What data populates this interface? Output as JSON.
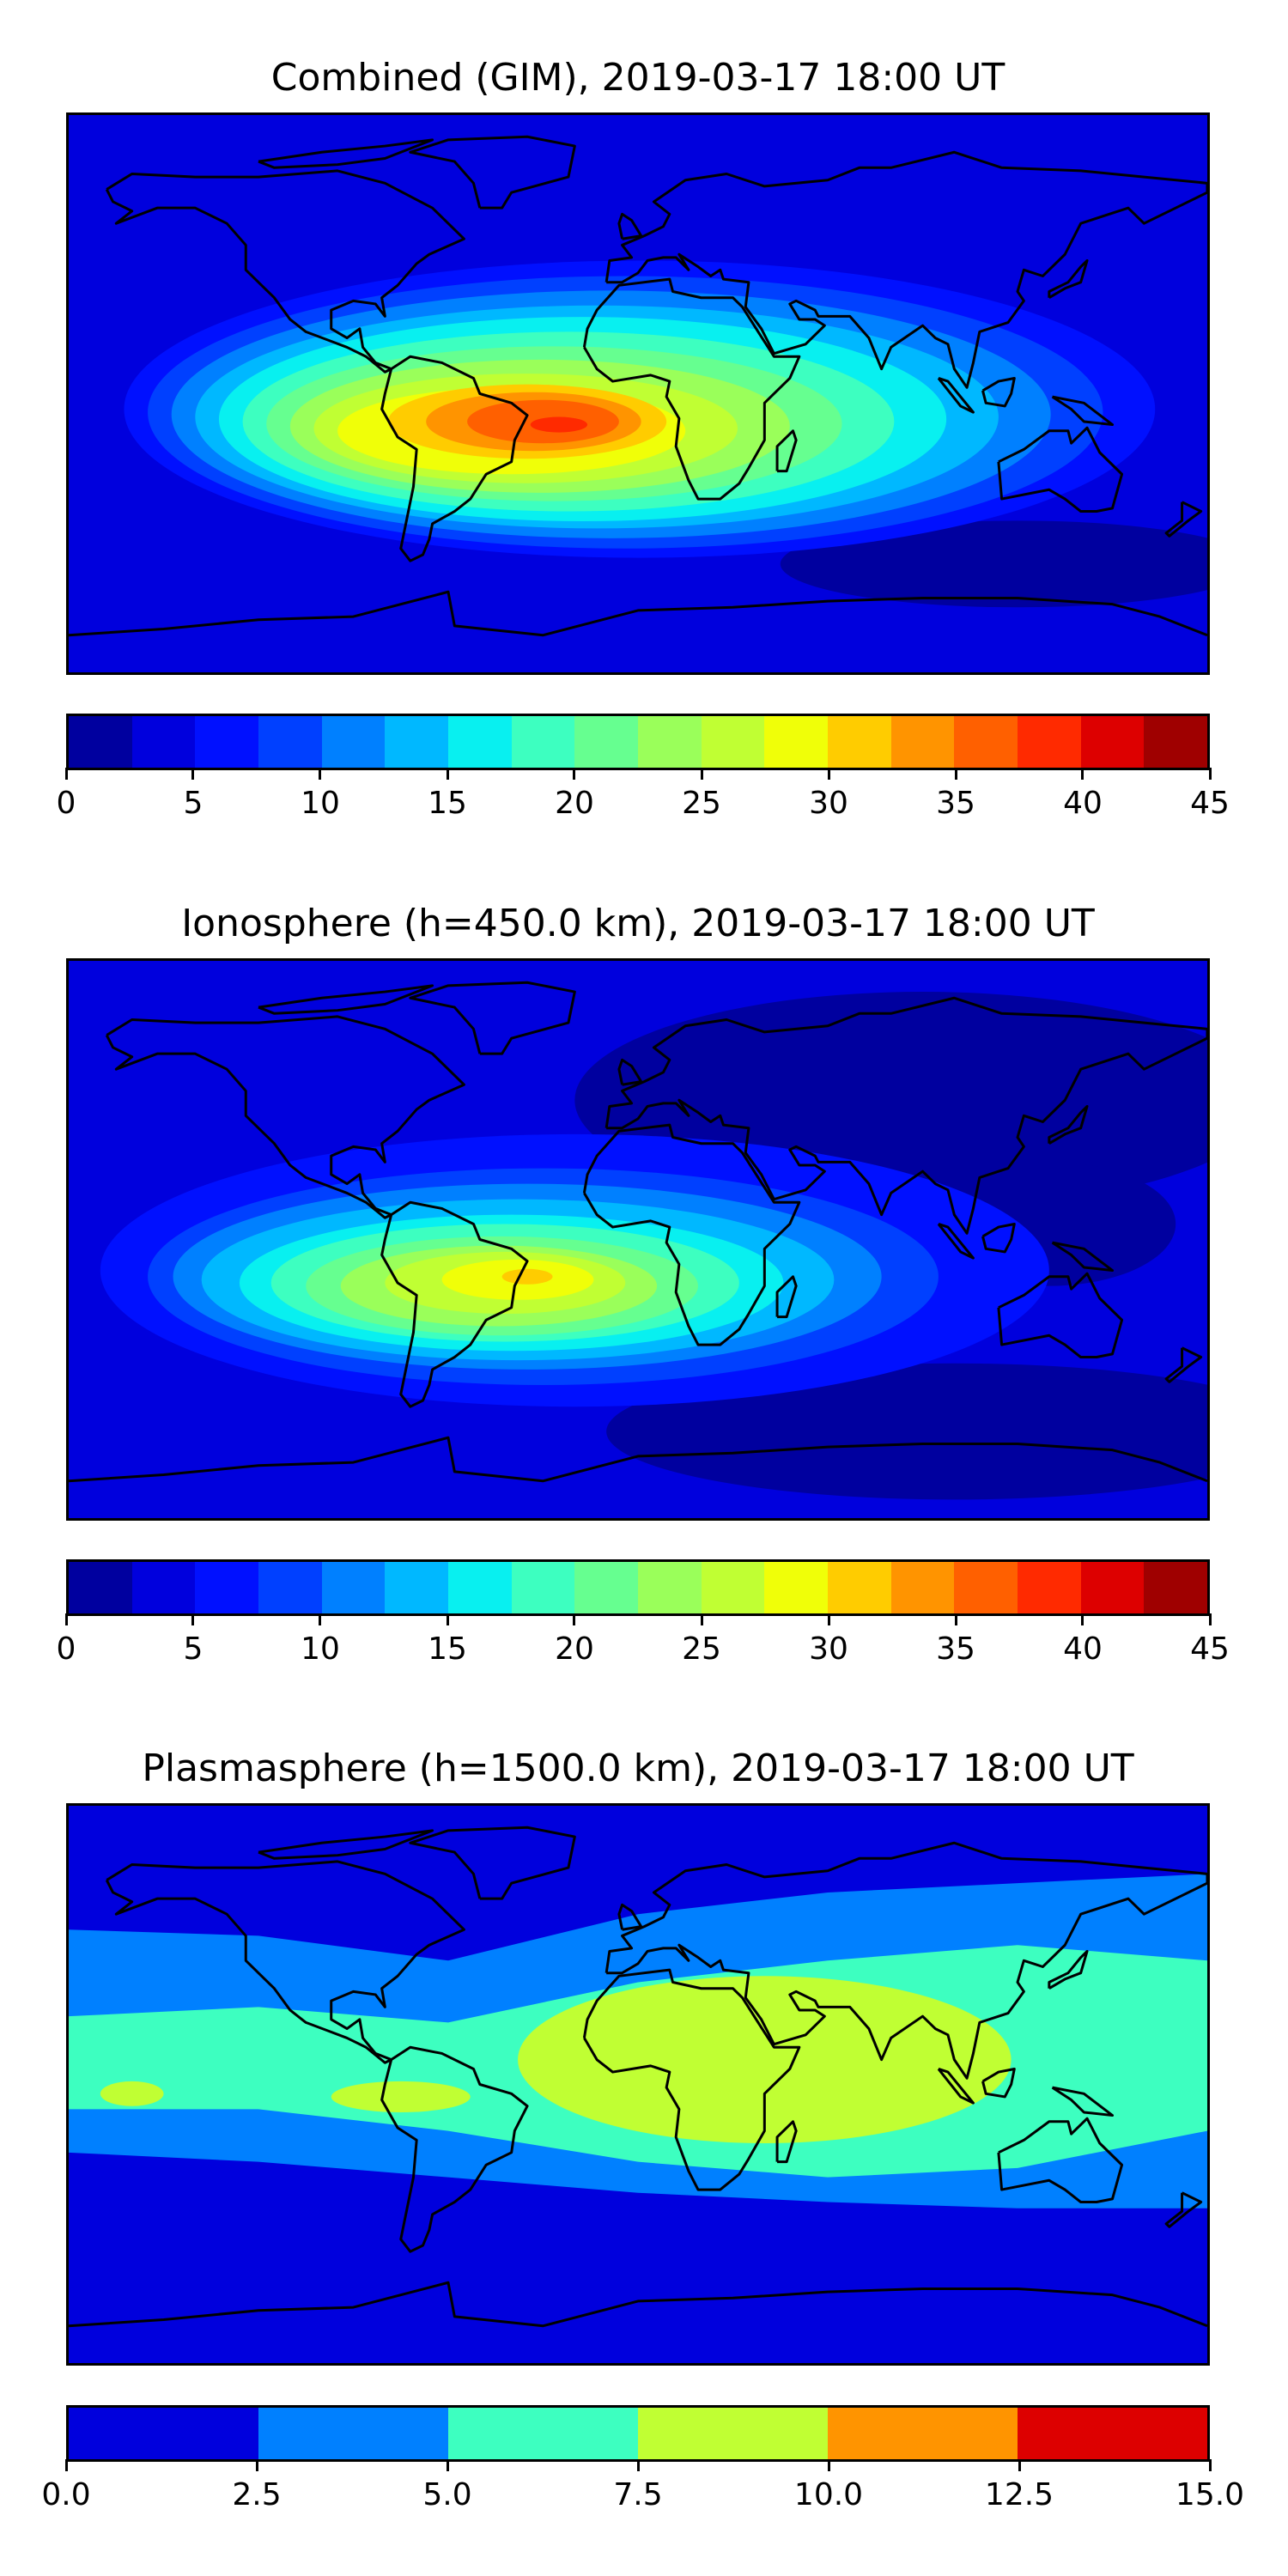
{
  "chart_data": [
    {
      "type": "heatmap",
      "subtype": "filled-contour-map",
      "title": "Combined (GIM), 2019-03-17 18:00 UT",
      "lon_range": [
        -180,
        180
      ],
      "lat_range": [
        -90,
        90
      ],
      "colorbar": {
        "ticks": [
          "0",
          "5",
          "10",
          "15",
          "20",
          "25",
          "30",
          "35",
          "40",
          "45"
        ],
        "levels": [
          0,
          2.5,
          5,
          7.5,
          10,
          12.5,
          15,
          17.5,
          20,
          22.5,
          25,
          27.5,
          30,
          32.5,
          35,
          37.5,
          40,
          42.5,
          45
        ],
        "colors": [
          "#00009f",
          "#0000dd",
          "#0010ff",
          "#0040ff",
          "#0080ff",
          "#00b8ff",
          "#08f0f0",
          "#3dffc0",
          "#66ff90",
          "#9aff5a",
          "#c0ff33",
          "#f0ff08",
          "#ffcc00",
          "#ff9400",
          "#ff6000",
          "#ff2a00",
          "#dd0000",
          "#9f0000"
        ]
      },
      "background_level_index": 1,
      "contours": [
        {
          "level_index": 0,
          "lon": 120,
          "lat": -55,
          "rlon": 75,
          "rlat": 14
        },
        {
          "level_index": 2,
          "lon": 0.5,
          "lat": -5,
          "rlon": 163,
          "rlat": 48
        },
        {
          "level_index": 3,
          "lon": -4,
          "lat": -6,
          "rlon": 151,
          "rlat": 44
        },
        {
          "level_index": 4,
          "lon": -8.5,
          "lat": -6.7,
          "rlon": 139,
          "rlat": 40
        },
        {
          "level_index": 5,
          "lon": -13,
          "lat": -7.5,
          "rlon": 127,
          "rlat": 36
        },
        {
          "level_index": 6,
          "lon": -17.5,
          "lat": -8.2,
          "rlon": 115,
          "rlat": 33
        },
        {
          "level_index": 7,
          "lon": -22,
          "lat": -9,
          "rlon": 103,
          "rlat": 29
        },
        {
          "level_index": 8,
          "lon": -26.5,
          "lat": -9.7,
          "rlon": 91,
          "rlat": 25
        },
        {
          "level_index": 9,
          "lon": -31,
          "lat": -10.5,
          "rlon": 79,
          "rlat": 21.5
        },
        {
          "level_index": 10,
          "lon": -35.5,
          "lat": -11.2,
          "rlon": 67,
          "rlat": 17.7
        },
        {
          "level_index": 11,
          "lon": -40,
          "lat": -12,
          "rlon": 55,
          "rlat": 14
        },
        {
          "level_index": 12,
          "lon": -35,
          "lat": -9,
          "rlon": 44,
          "rlat": 12
        },
        {
          "level_index": 13,
          "lon": -33,
          "lat": -9,
          "rlon": 34,
          "rlat": 9.5
        },
        {
          "level_index": 14,
          "lon": -30,
          "lat": -9,
          "rlon": 24,
          "rlat": 7
        },
        {
          "level_index": 15,
          "lon": -25,
          "lat": -10,
          "rlon": 9,
          "rlat": 2.5
        }
      ]
    },
    {
      "type": "heatmap",
      "subtype": "filled-contour-map",
      "title": "Ionosphere  (h=450.0 km), 2019-03-17 18:00 UT",
      "lon_range": [
        -180,
        180
      ],
      "lat_range": [
        -90,
        90
      ],
      "colorbar": {
        "ticks": [
          "0",
          "5",
          "10",
          "15",
          "20",
          "25",
          "30",
          "35",
          "40",
          "45"
        ],
        "levels": [
          0,
          2.5,
          5,
          7.5,
          10,
          12.5,
          15,
          17.5,
          20,
          22.5,
          25,
          27.5,
          30,
          32.5,
          35,
          37.5,
          40,
          42.5,
          45
        ],
        "colors": [
          "#00009f",
          "#0000dd",
          "#0010ff",
          "#0040ff",
          "#0080ff",
          "#00b8ff",
          "#08f0f0",
          "#3dffc0",
          "#66ff90",
          "#9aff5a",
          "#c0ff33",
          "#f0ff08",
          "#ffcc00",
          "#ff9400",
          "#ff6000",
          "#ff2a00",
          "#dd0000",
          "#9f0000"
        ]
      },
      "background_level_index": 1,
      "contours": [
        {
          "level_index": 0,
          "lon": 90,
          "lat": 45,
          "rlon": 110,
          "rlat": 35
        },
        {
          "level_index": 0,
          "lon": 100,
          "lat": -62,
          "rlon": 110,
          "rlat": 22
        },
        {
          "level_index": 0,
          "lon": 130,
          "lat": 5,
          "rlon": 40,
          "rlat": 20
        },
        {
          "level_index": 2,
          "lon": -20,
          "lat": -10,
          "rlon": 150,
          "rlat": 44
        },
        {
          "level_index": 3,
          "lon": -30,
          "lat": -12,
          "rlon": 125,
          "rlat": 35
        },
        {
          "level_index": 4,
          "lon": -35,
          "lat": -12,
          "rlon": 112,
          "rlat": 30
        },
        {
          "level_index": 5,
          "lon": -38,
          "lat": -13,
          "rlon": 100,
          "rlat": 26
        },
        {
          "level_index": 6,
          "lon": -40,
          "lat": -14,
          "rlon": 86,
          "rlat": 22
        },
        {
          "level_index": 7,
          "lon": -42,
          "lat": -14,
          "rlon": 74,
          "rlat": 19
        },
        {
          "level_index": 8,
          "lon": -43,
          "lat": -15,
          "rlon": 62,
          "rlat": 16
        },
        {
          "level_index": 9,
          "lon": -44,
          "lat": -15,
          "rlon": 50,
          "rlat": 13
        },
        {
          "level_index": 10,
          "lon": -42,
          "lat": -14,
          "rlon": 38,
          "rlat": 10
        },
        {
          "level_index": 11,
          "lon": -38,
          "lat": -13,
          "rlon": 24,
          "rlat": 6.5
        },
        {
          "level_index": 12,
          "lon": -35,
          "lat": -12,
          "rlon": 8,
          "rlat": 2.5
        }
      ]
    },
    {
      "type": "heatmap",
      "subtype": "filled-contour-map",
      "title": "Plasmasphere (h=1500.0 km), 2019-03-17 18:00 UT",
      "lon_range": [
        -180,
        180
      ],
      "lat_range": [
        -90,
        90
      ],
      "colorbar": {
        "ticks": [
          "0.0",
          "2.5",
          "5.0",
          "7.5",
          "10.0",
          "12.5",
          "15.0"
        ],
        "levels": [
          0,
          2.5,
          5,
          7.5,
          10,
          12.5,
          15
        ],
        "colors": [
          "#0000dd",
          "#0080ff",
          "#3dffc0",
          "#c0ff33",
          "#ff9400",
          "#dd0000"
        ]
      },
      "background_level_index": 0,
      "bands": [
        {
          "level_index": 1,
          "lons": [
            -180,
            -120,
            -60,
            0,
            60,
            120,
            180
          ],
          "upper": [
            50,
            48,
            40,
            55,
            62,
            65,
            68
          ],
          "lower": [
            -22,
            -25,
            -30,
            -35,
            -38,
            -40,
            -40
          ]
        },
        {
          "level_index": 2,
          "lons": [
            -180,
            -120,
            -60,
            0,
            60,
            120,
            180
          ],
          "upper": [
            22,
            25,
            20,
            33,
            40,
            45,
            40
          ],
          "lower": [
            -8,
            -8,
            -15,
            -25,
            -30,
            -27,
            -15
          ]
        }
      ],
      "contours": [
        {
          "level_index": 3,
          "lon": -160,
          "lat": -3,
          "rlon": 10,
          "rlat": 4
        },
        {
          "level_index": 3,
          "lon": -75,
          "lat": -4,
          "rlon": 22,
          "rlat": 5
        },
        {
          "level_index": 3,
          "lon": 40,
          "lat": 8,
          "rlon": 78,
          "rlat": 27
        }
      ]
    }
  ]
}
